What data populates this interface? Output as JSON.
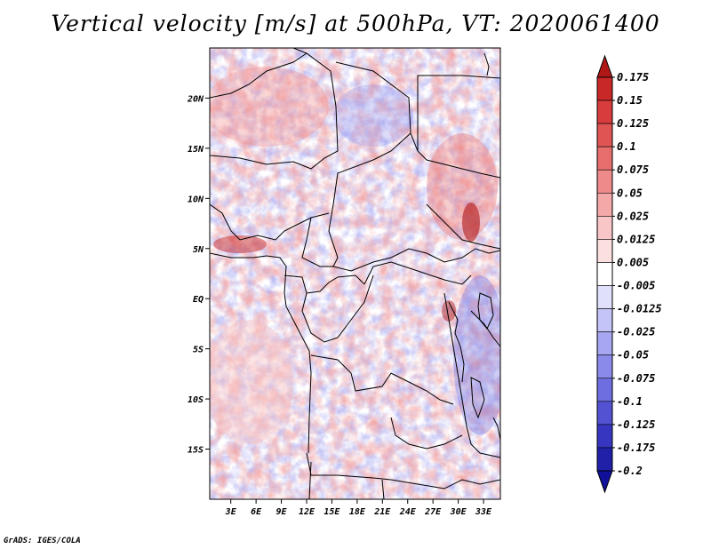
{
  "chart_data": {
    "type": "heatmap",
    "title": "Vertical velocity [m/s] at 500hPa, VT: 2020061400",
    "x_ticks": [
      "3E",
      "6E",
      "9E",
      "12E",
      "15E",
      "18E",
      "21E",
      "24E",
      "27E",
      "30E",
      "33E"
    ],
    "x_tick_values": [
      3,
      6,
      9,
      12,
      15,
      18,
      21,
      24,
      27,
      30,
      33
    ],
    "y_ticks": [
      "20N",
      "15N",
      "10N",
      "5N",
      "EQ",
      "5S",
      "10S",
      "15S"
    ],
    "y_tick_values": [
      20,
      15,
      10,
      5,
      0,
      -5,
      -10,
      -15
    ],
    "xlim": [
      0.5,
      35
    ],
    "ylim": [
      -20,
      25
    ],
    "colorbar_labels": [
      "0.175",
      "0.15",
      "0.125",
      "0.1",
      "0.075",
      "0.05",
      "0.025",
      "0.0125",
      "0.005",
      "-0.005",
      "-0.0125",
      "-0.025",
      "-0.05",
      "-0.075",
      "-0.1",
      "-0.125",
      "-0.175",
      "-0.2"
    ],
    "colorbar_colors": [
      "#b01818",
      "#c82828",
      "#d83c3c",
      "#e05454",
      "#e86e6e",
      "#ee8a8a",
      "#f4a8a8",
      "#f8c6c6",
      "#fce0e0",
      "#ffffff",
      "#e0e0fc",
      "#c4c4f8",
      "#a6a6f2",
      "#8a8aea",
      "#6e6ee0",
      "#5252d2",
      "#3636c0",
      "#2020a8",
      "#10109a"
    ],
    "data_description": "Gridded vertical velocity field over Central Africa; positive (red) and negative (blue) values at 500hPa"
  },
  "footer": "GrADS: IGES/COLA"
}
